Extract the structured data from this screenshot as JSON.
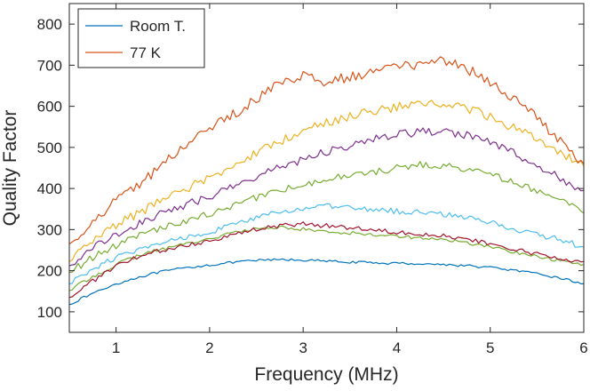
{
  "chart_data": {
    "type": "line",
    "xlabel": "Frequency (MHz)",
    "ylabel": "Quality Factor",
    "xlim": [
      0.5,
      6
    ],
    "ylim": [
      50,
      850
    ],
    "xticks": [
      1,
      2,
      3,
      4,
      5,
      6
    ],
    "yticks": [
      100,
      200,
      300,
      400,
      500,
      600,
      700,
      800
    ],
    "grid": false,
    "legend": {
      "position": "top-left",
      "entries": [
        "Room T.",
        "77 K"
      ]
    },
    "x": [
      0.5,
      0.75,
      1.0,
      1.25,
      1.5,
      1.75,
      2.0,
      2.25,
      2.5,
      2.75,
      3.0,
      3.25,
      3.5,
      3.75,
      4.0,
      4.25,
      4.5,
      4.75,
      5.0,
      5.25,
      5.5,
      5.75,
      6.0
    ],
    "series": [
      {
        "name": "Room T.",
        "color": "#0072BD",
        "values": [
          118,
          145,
          168,
          185,
          198,
          207,
          214,
          220,
          225,
          227,
          226,
          223,
          221,
          219,
          218,
          217,
          215,
          212,
          208,
          201,
          192,
          182,
          168
        ]
      },
      {
        "color": "#77AC30",
        "values": [
          152,
          185,
          215,
          238,
          253,
          266,
          278,
          292,
          302,
          306,
          301,
          295,
          292,
          288,
          285,
          280,
          275,
          268,
          258,
          246,
          234,
          224,
          215
        ]
      },
      {
        "color": "#A2142F",
        "values": [
          135,
          175,
          210,
          235,
          250,
          262,
          274,
          288,
          300,
          310,
          313,
          310,
          305,
          300,
          295,
          290,
          285,
          275,
          265,
          252,
          240,
          230,
          222
        ]
      },
      {
        "color": "#4DBEEE",
        "values": [
          168,
          205,
          232,
          250,
          268,
          282,
          295,
          312,
          328,
          342,
          352,
          356,
          353,
          348,
          345,
          342,
          338,
          330,
          318,
          302,
          288,
          275,
          258
        ]
      },
      {
        "color": "#77AC30",
        "values": [
          196,
          232,
          262,
          285,
          305,
          322,
          338,
          358,
          378,
          396,
          410,
          422,
          432,
          440,
          450,
          458,
          455,
          448,
          432,
          415,
          395,
          370,
          340
        ]
      },
      {
        "color": "#7E2F8E",
        "values": [
          212,
          255,
          290,
          315,
          340,
          362,
          380,
          405,
          428,
          452,
          470,
          490,
          505,
          520,
          530,
          538,
          540,
          530,
          512,
          485,
          455,
          425,
          395
        ]
      },
      {
        "color": "#EDB120",
        "values": [
          222,
          275,
          312,
          340,
          372,
          400,
          425,
          455,
          485,
          515,
          540,
          560,
          575,
          588,
          598,
          605,
          608,
          595,
          575,
          548,
          520,
          490,
          455
        ]
      },
      {
        "name": "77 K",
        "color": "#D95319",
        "values": [
          265,
          320,
          370,
          410,
          460,
          505,
          545,
          580,
          620,
          660,
          672,
          660,
          672,
          685,
          695,
          705,
          712,
          690,
          660,
          620,
          570,
          515,
          460
        ]
      }
    ]
  }
}
